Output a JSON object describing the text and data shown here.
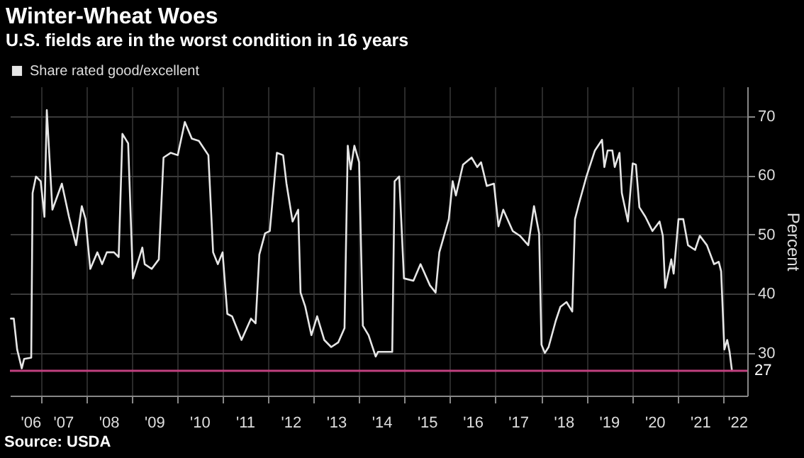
{
  "chart_data": {
    "type": "line",
    "title": "Winter-Wheat Woes",
    "subtitle": "U.S. fields are in the worst condition in 16 years",
    "ylabel": "Percent",
    "annotations": [
      "Source: USDA"
    ],
    "x": [
      "2006-05-09",
      "2006-06-01",
      "2006-06-28",
      "2006-08-04",
      "2006-08-23",
      "2006-10-19",
      "2006-10-30",
      "2006-11-26",
      "2007-01-03",
      "2007-02-02",
      "2007-02-21",
      "2007-04-07",
      "2007-06-22",
      "2007-08-18",
      "2007-10-14",
      "2007-11-29",
      "2007-12-29",
      "2008-02-05",
      "2008-04-02",
      "2008-05-10",
      "2008-06-17",
      "2008-08-13",
      "2008-09-20",
      "2008-10-20",
      "2008-12-05",
      "2009-01-12",
      "2009-03-29",
      "2009-04-17",
      "2009-06-12",
      "2009-08-08",
      "2009-09-15",
      "2009-11-11",
      "2010-01-07",
      "2010-03-05",
      "2010-04-30",
      "2010-06-26",
      "2010-09-10",
      "2010-10-18",
      "2010-11-25",
      "2011-01-02",
      "2011-02-09",
      "2011-03-19",
      "2011-06-03",
      "2011-08-18",
      "2011-09-24",
      "2011-10-24",
      "2011-12-09",
      "2012-01-16",
      "2012-03-13",
      "2012-05-02",
      "2012-05-29",
      "2012-07-17",
      "2012-08-31",
      "2012-09-19",
      "2012-10-27",
      "2012-12-15",
      "2013-01-30",
      "2013-03-28",
      "2013-05-23",
      "2013-07-19",
      "2013-09-07",
      "2013-10-03",
      "2013-10-26",
      "2013-11-25",
      "2014-01-02",
      "2014-02-01",
      "2014-03-19",
      "2014-05-15",
      "2014-06-03",
      "2014-09-25",
      "2014-10-14",
      "2014-11-20",
      "2014-12-28",
      "2015-03-14",
      "2015-05-10",
      "2015-07-25",
      "2015-09-08",
      "2015-10-08",
      "2015-12-23",
      "2016-01-23",
      "2016-02-18",
      "2016-04-15",
      "2016-06-23",
      "2016-08-07",
      "2016-09-07",
      "2016-10-23",
      "2016-12-19",
      "2017-01-25",
      "2017-03-04",
      "2017-05-19",
      "2017-07-15",
      "2017-09-21",
      "2017-11-06",
      "2017-12-17",
      "2018-01-05",
      "2018-02-01",
      "2018-03-03",
      "2018-04-29",
      "2018-06-06",
      "2018-07-25",
      "2018-09-09",
      "2018-10-01",
      "2018-11-04",
      "2019-01-01",
      "2019-03-10",
      "2019-05-06",
      "2019-05-25",
      "2019-06-20",
      "2019-07-28",
      "2019-08-16",
      "2019-09-23",
      "2019-10-12",
      "2019-11-30",
      "2020-01-07",
      "2020-02-02",
      "2020-03-01",
      "2020-04-18",
      "2020-06-14",
      "2020-08-10",
      "2020-09-05",
      "2020-09-24",
      "2020-11-12",
      "2020-12-01",
      "2021-01-09",
      "2021-02-16",
      "2021-03-26",
      "2021-05-22",
      "2021-06-29",
      "2021-08-25",
      "2021-10-21",
      "2021-11-28",
      "2021-12-17",
      "2022-01-12",
      "2022-02-04",
      "2022-02-23",
      "2022-03-14"
    ],
    "series": [
      {
        "name": "Share rated good/excellent",
        "color": "#e6e6e6",
        "values": [
          35.8,
          35.8,
          30.6,
          27.4,
          29,
          29.2,
          57,
          59.8,
          59,
          53,
          71,
          54.2,
          58.6,
          53,
          48.2,
          54.8,
          52.6,
          44.2,
          47,
          45,
          47,
          47,
          46.2,
          67,
          65.4,
          42.6,
          47.8,
          45,
          44.2,
          45.8,
          63,
          63.8,
          63.4,
          69,
          66.2,
          65.8,
          63.4,
          47,
          45,
          47,
          36.6,
          36.2,
          32.2,
          35.8,
          35,
          46.6,
          50.2,
          50.6,
          63.8,
          63.4,
          58.6,
          52.2,
          54.2,
          40.2,
          37.8,
          33,
          36.2,
          32.2,
          31,
          31.8,
          34.2,
          65,
          61,
          65,
          62.2,
          34.6,
          33,
          29.4,
          30.2,
          30.2,
          59,
          59.8,
          42.6,
          42.2,
          45,
          41.4,
          40.2,
          47,
          52.6,
          59,
          56.6,
          61.8,
          63,
          61.4,
          62.2,
          58.2,
          58.6,
          51.4,
          54.2,
          50.6,
          49.8,
          48.2,
          54.8,
          50.2,
          31.4,
          30,
          31,
          35.4,
          37.8,
          38.6,
          37,
          52.6,
          55.4,
          59.8,
          64.2,
          66,
          61.4,
          64.2,
          64.2,
          61.4,
          63.8,
          57,
          52.2,
          62,
          61.8,
          54.6,
          53,
          50.6,
          52.2,
          49.8,
          41,
          45.8,
          43.4,
          52.6,
          52.6,
          48.2,
          47.4,
          49.8,
          48.2,
          45,
          45.4,
          43.8,
          30.6,
          32.2,
          30.2,
          27
        ]
      }
    ],
    "xlim": [
      "2006-05-01",
      "2022-07-15"
    ],
    "xticks": [
      {
        "value": "2006-10-12",
        "label": "'06"
      },
      {
        "value": "2007-01-01",
        "label": null
      },
      {
        "value": "2007-07-01",
        "label": "'07"
      },
      {
        "value": "2008-01-01",
        "label": null
      },
      {
        "value": "2008-07-01",
        "label": "'08"
      },
      {
        "value": "2009-01-01",
        "label": null
      },
      {
        "value": "2009-07-01",
        "label": "'09"
      },
      {
        "value": "2010-01-01",
        "label": null
      },
      {
        "value": "2010-07-01",
        "label": "'10"
      },
      {
        "value": "2011-01-01",
        "label": null
      },
      {
        "value": "2011-07-01",
        "label": "'11"
      },
      {
        "value": "2012-01-01",
        "label": null
      },
      {
        "value": "2012-07-01",
        "label": "'12"
      },
      {
        "value": "2013-01-01",
        "label": null
      },
      {
        "value": "2013-07-01",
        "label": "'13"
      },
      {
        "value": "2014-01-01",
        "label": null
      },
      {
        "value": "2014-07-01",
        "label": "'14"
      },
      {
        "value": "2015-01-01",
        "label": null
      },
      {
        "value": "2015-07-01",
        "label": "'15"
      },
      {
        "value": "2016-01-01",
        "label": null
      },
      {
        "value": "2016-07-01",
        "label": "'16"
      },
      {
        "value": "2017-01-01",
        "label": null
      },
      {
        "value": "2017-07-01",
        "label": "'17"
      },
      {
        "value": "2018-01-01",
        "label": null
      },
      {
        "value": "2018-07-01",
        "label": "'18"
      },
      {
        "value": "2019-01-01",
        "label": null
      },
      {
        "value": "2019-07-01",
        "label": "'19"
      },
      {
        "value": "2020-01-01",
        "label": null
      },
      {
        "value": "2020-07-01",
        "label": "'20"
      },
      {
        "value": "2021-01-01",
        "label": null
      },
      {
        "value": "2021-07-01",
        "label": "'21"
      },
      {
        "value": "2022-01-01",
        "label": null
      },
      {
        "value": "2022-04-25",
        "label": "'22"
      }
    ],
    "ylim": [
      22.8,
      75
    ],
    "yticks": [
      30,
      40,
      50,
      60,
      70
    ],
    "grid": true,
    "legend": "top left",
    "ref_lines": [
      {
        "axis": "y",
        "value": 27,
        "label": "27",
        "color": "#c0407f"
      }
    ]
  }
}
